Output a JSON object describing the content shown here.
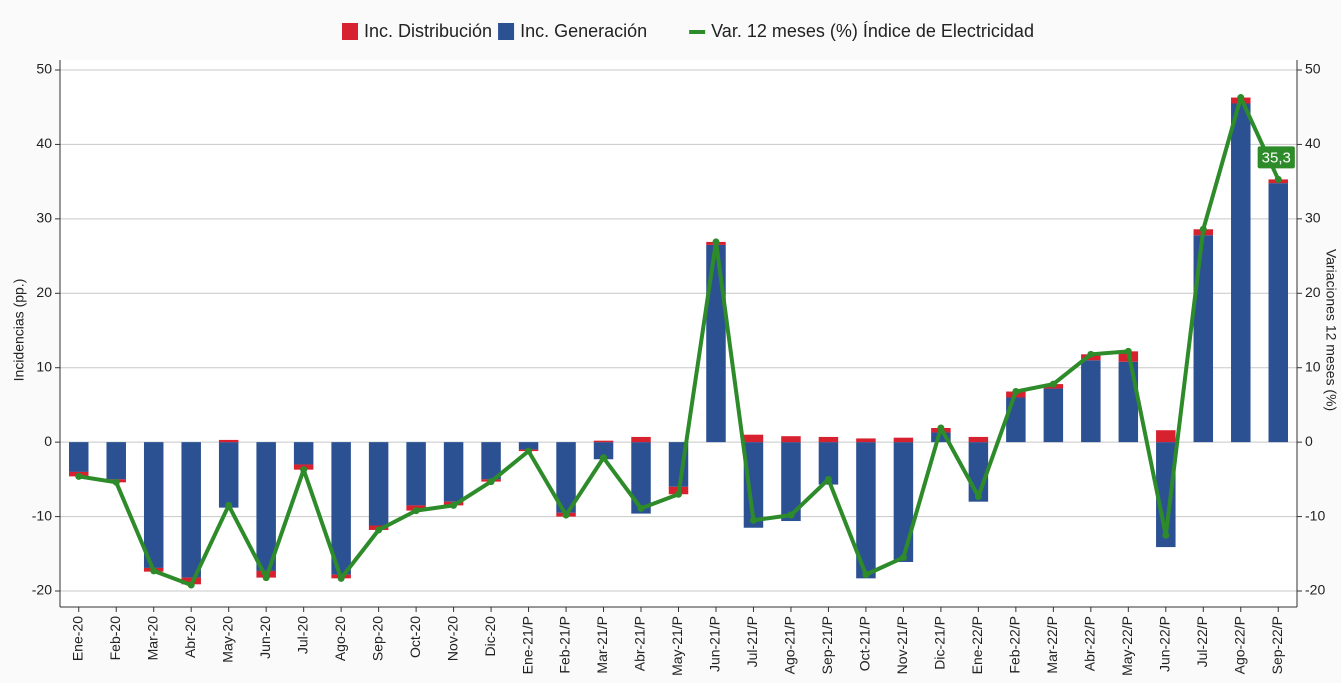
{
  "chart_data": {
    "type": "bar",
    "stacked": true,
    "ylabel": "Incidencias (pp.)",
    "y2label": "Variaciones 12 meses (%)",
    "categories": [
      "Ene-20",
      "Feb-20",
      "Mar-20",
      "Abr-20",
      "May-20",
      "Jun-20",
      "Jul-20",
      "Ago-20",
      "Sep-20",
      "Oct-20",
      "Nov-20",
      "Dic-20",
      "Ene-21/P",
      "Feb-21/P",
      "Mar-21/P",
      "Abr-21/P",
      "May-21/P",
      "Jun-21/P",
      "Jul-21/P",
      "Ago-21/P",
      "Sep-21/P",
      "Oct-21/P",
      "Nov-21/P",
      "Dic-21/P",
      "Ene-22/P",
      "Feb-22/P",
      "Mar-22/P",
      "Abr-22/P",
      "May-22/P",
      "Jun-22/P",
      "Jul-22/P",
      "Ago-22/P",
      "Sep-22/P"
    ],
    "series": [
      {
        "name": "Inc. Distribución",
        "color": "#d7212f",
        "stack_order": 1,
        "values": [
          -0.6,
          -0.4,
          -0.5,
          -0.9,
          0.3,
          -0.9,
          -0.7,
          -0.5,
          -0.6,
          -0.7,
          -0.5,
          -0.3,
          -0.2,
          -0.5,
          0.2,
          0.7,
          -1.0,
          0.4,
          1.0,
          0.8,
          0.7,
          0.5,
          0.6,
          0.6,
          0.7,
          0.8,
          0.6,
          0.8,
          1.4,
          1.6,
          0.8,
          0.8,
          0.5
        ]
      },
      {
        "name": "Inc. Generación",
        "color": "#2b5193",
        "stack_order": 0,
        "values": [
          -4.0,
          -5.0,
          -16.9,
          -18.2,
          -8.8,
          -17.3,
          -3.0,
          -17.8,
          -11.2,
          -8.5,
          -8.0,
          -5.0,
          -1.0,
          -9.5,
          -2.3,
          -9.6,
          -6.0,
          26.5,
          -11.5,
          -10.6,
          -5.7,
          -18.3,
          -16.1,
          1.3,
          -8.0,
          6.0,
          7.2,
          11.0,
          10.8,
          -14.1,
          27.8,
          45.5,
          34.8
        ]
      },
      {
        "name": "Var. 12 meses (%) Índice de Electricidad",
        "color": "#2e8b2a",
        "type": "line",
        "axis": "y2",
        "values": [
          -4.6,
          -5.4,
          -17.3,
          -19.2,
          -8.5,
          -18.2,
          -3.7,
          -18.3,
          -11.8,
          -9.2,
          -8.5,
          -5.3,
          -1.2,
          -9.8,
          -2.1,
          -8.9,
          -7.0,
          26.9,
          -10.5,
          -9.8,
          -5.0,
          -17.8,
          -15.5,
          1.9,
          -7.3,
          6.8,
          7.8,
          11.8,
          12.2,
          -12.5,
          28.6,
          46.3,
          35.3
        ],
        "value_labels": [
          null,
          null,
          null,
          null,
          null,
          null,
          null,
          null,
          null,
          null,
          null,
          null,
          null,
          null,
          null,
          null,
          null,
          null,
          null,
          null,
          null,
          null,
          null,
          null,
          null,
          null,
          null,
          null,
          null,
          null,
          null,
          null,
          "35,3"
        ]
      }
    ],
    "ylim": [
      -20,
      50
    ],
    "yticks": [
      -20,
      -10,
      0,
      10,
      20,
      30,
      40,
      50
    ],
    "y2lim": [
      -20,
      50
    ],
    "y2ticks": [
      -20,
      -10,
      0,
      10,
      20,
      30,
      40,
      50
    ],
    "grid": true,
    "legend": "top"
  }
}
